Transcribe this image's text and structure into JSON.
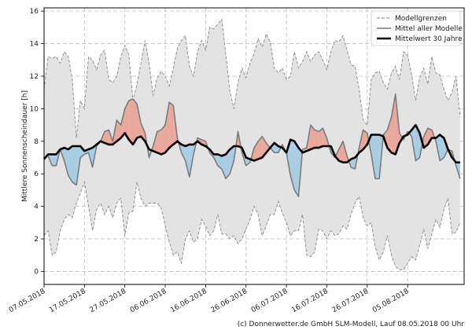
{
  "chart_data": {
    "type": "line",
    "ylabel": "Mittlere Sonnenscheindauer [h]",
    "ylim": [
      -0.8,
      16.2
    ],
    "yticks": [
      0,
      2,
      4,
      6,
      8,
      10,
      12,
      14,
      16
    ],
    "x_days": 104,
    "xtick_days": [
      0,
      10,
      20,
      30,
      40,
      50,
      60,
      70,
      80,
      90
    ],
    "xtick_labels": [
      "07.05.2018",
      "17.05.2018",
      "27.05.2018",
      "06.06.2018",
      "16.06.2018",
      "26.06.2018",
      "06.07.2018",
      "16.07.2018",
      "26.07.2018",
      "05.08.2018"
    ],
    "legend": {
      "position": "top-right",
      "entries": [
        "Modellgrenzen",
        "Mittel aller Modelle",
        "Mittelwert 30 Jahre"
      ]
    },
    "colors": {
      "band": "#e3e3e3",
      "band_edge": "#8a8a8a",
      "above": "#e9a89b",
      "below": "#a9cde3",
      "model_mean": "#777777",
      "climate": "#000000"
    },
    "series": [
      {
        "name": "Modellgrenzen max",
        "values": [
          11.2,
          13.2,
          13.1,
          13.2,
          12.8,
          13.5,
          13.2,
          11.8,
          8.2,
          10.5,
          10.0,
          13.2,
          13.0,
          12.4,
          13.3,
          13.6,
          11.8,
          11.6,
          12.0,
          13.2,
          13.9,
          13.3,
          10.5,
          11.5,
          12.8,
          14.2,
          12.8,
          10.8,
          11.9,
          12.3,
          12.0,
          11.4,
          12.5,
          13.7,
          14.2,
          14.5,
          12.6,
          12.0,
          13.5,
          14.2,
          13.6,
          15.0,
          14.9,
          15.2,
          15.5,
          13.3,
          11.1,
          10.0,
          11.6,
          12.5,
          11.9,
          12.8,
          13.4,
          14.3,
          13.8,
          14.6,
          14.1,
          12.5,
          12.2,
          12.5,
          11.8,
          12.0,
          13.5,
          12.5,
          12.9,
          13.5,
          12.9,
          13.3,
          13.5,
          13.0,
          12.4,
          13.5,
          14.2,
          14.1,
          14.5,
          13.6,
          12.7,
          12.6,
          11.2,
          9.3,
          9.0,
          11.8,
          12.2,
          12.3,
          11.6,
          11.2,
          12.2,
          12.6,
          11.8,
          13.5,
          13.3,
          12.1,
          10.5,
          11.9,
          12.5,
          11.5,
          13.2,
          12.2,
          12.1,
          11.2,
          10.5,
          11.0,
          12.0,
          9.5
        ]
      },
      {
        "name": "Modellgrenzen min",
        "values": [
          2.2,
          2.5,
          1.0,
          1.2,
          2.5,
          3.2,
          3.5,
          3.3,
          4.2,
          4.8,
          5.5,
          4.0,
          2.5,
          3.8,
          4.2,
          3.5,
          4.0,
          3.3,
          4.2,
          4.5,
          2.2,
          3.6,
          3.7,
          5.5,
          4.5,
          4.0,
          4.2,
          4.2,
          4.2,
          3.9,
          2.8,
          1.8,
          1.0,
          1.2,
          0.5,
          2.0,
          2.5,
          1.8,
          2.0,
          3.2,
          2.8,
          2.2,
          2.5,
          3.5,
          2.3,
          2.3,
          2.0,
          2.2,
          1.7,
          2.0,
          2.6,
          3.2,
          4.0,
          3.5,
          2.2,
          2.8,
          3.5,
          3.5,
          4.3,
          3.6,
          3.0,
          2.2,
          2.5,
          2.5,
          3.5,
          1.0,
          0.9,
          1.2,
          2.6,
          2.5,
          2.0,
          2.5,
          2.2,
          2.3,
          2.8,
          2.6,
          3.5,
          4.2,
          4.6,
          3.3,
          2.8,
          3.0,
          1.5,
          0.7,
          1.2,
          2.2,
          1.0,
          0.3,
          0.1,
          0.1,
          0.5,
          0.9,
          0.7,
          1.6,
          2.6,
          1.4,
          2.3,
          3.2,
          2.7,
          3.8,
          4.5,
          2.3,
          2.4,
          3.0
        ]
      },
      {
        "name": "Mittel aller Modelle",
        "values": [
          7.0,
          7.1,
          6.5,
          6.5,
          7.5,
          6.8,
          5.9,
          5.5,
          5.3,
          7.0,
          7.2,
          7.3,
          6.4,
          7.7,
          8.0,
          8.6,
          8.7,
          8.0,
          9.3,
          9.0,
          10.0,
          10.5,
          10.6,
          10.3,
          9.1,
          8.5,
          7.0,
          7.7,
          8.6,
          8.7,
          9.0,
          10.4,
          10.2,
          8.2,
          7.3,
          6.8,
          5.8,
          7.2,
          8.2,
          8.1,
          8.0,
          7.3,
          7.0,
          6.5,
          6.3,
          5.7,
          6.0,
          6.8,
          8.6,
          7.3,
          6.5,
          6.7,
          7.6,
          8.0,
          8.3,
          7.9,
          7.6,
          7.3,
          7.3,
          7.8,
          7.3,
          5.9,
          5.0,
          4.6,
          7.5,
          7.6,
          9.0,
          8.7,
          8.6,
          8.8,
          8.2,
          7.3,
          7.0,
          7.5,
          8.0,
          7.1,
          6.4,
          6.3,
          7.6,
          8.7,
          8.5,
          7.2,
          5.7,
          5.7,
          8.4,
          8.7,
          9.5,
          10.9,
          8.5,
          8.1,
          8.6,
          8.3,
          6.8,
          7.0,
          8.3,
          8.8,
          8.7,
          8.0,
          6.8,
          7.0,
          7.5,
          7.4,
          6.5,
          5.7
        ]
      },
      {
        "name": "Mittelwert 30 Jahre",
        "values": [
          6.9,
          7.2,
          7.2,
          7.2,
          7.5,
          7.6,
          7.5,
          7.7,
          7.7,
          7.7,
          7.4,
          7.5,
          7.6,
          7.8,
          8.0,
          7.9,
          7.8,
          7.8,
          8.0,
          8.2,
          8.5,
          8.1,
          7.8,
          8.2,
          8.3,
          8.0,
          7.5,
          7.4,
          7.3,
          7.2,
          7.3,
          7.6,
          7.8,
          8.0,
          7.8,
          7.7,
          7.8,
          7.8,
          8.0,
          7.8,
          7.7,
          7.5,
          7.2,
          7.2,
          7.1,
          7.2,
          7.5,
          7.7,
          7.7,
          7.6,
          7.0,
          6.9,
          6.8,
          6.9,
          7.0,
          7.3,
          7.6,
          7.9,
          7.7,
          7.6,
          7.3,
          8.1,
          8.0,
          7.6,
          7.3,
          7.4,
          7.5,
          7.6,
          7.6,
          7.7,
          7.7,
          7.7,
          7.1,
          6.8,
          6.7,
          6.7,
          6.9,
          7.0,
          7.3,
          7.5,
          7.8,
          8.4,
          8.4,
          8.4,
          8.3,
          7.6,
          7.3,
          7.2,
          7.9,
          8.3,
          8.4,
          8.7,
          9.0,
          8.5,
          7.6,
          7.8,
          8.2,
          8.2,
          8.4,
          8.2,
          7.5,
          7.0,
          6.7,
          6.7
        ]
      }
    ]
  },
  "footer": {
    "copyright": "(c) Donnerwetter.de GmbH SLM-Modell, Lauf 08.05.2018 00 Uhr"
  }
}
